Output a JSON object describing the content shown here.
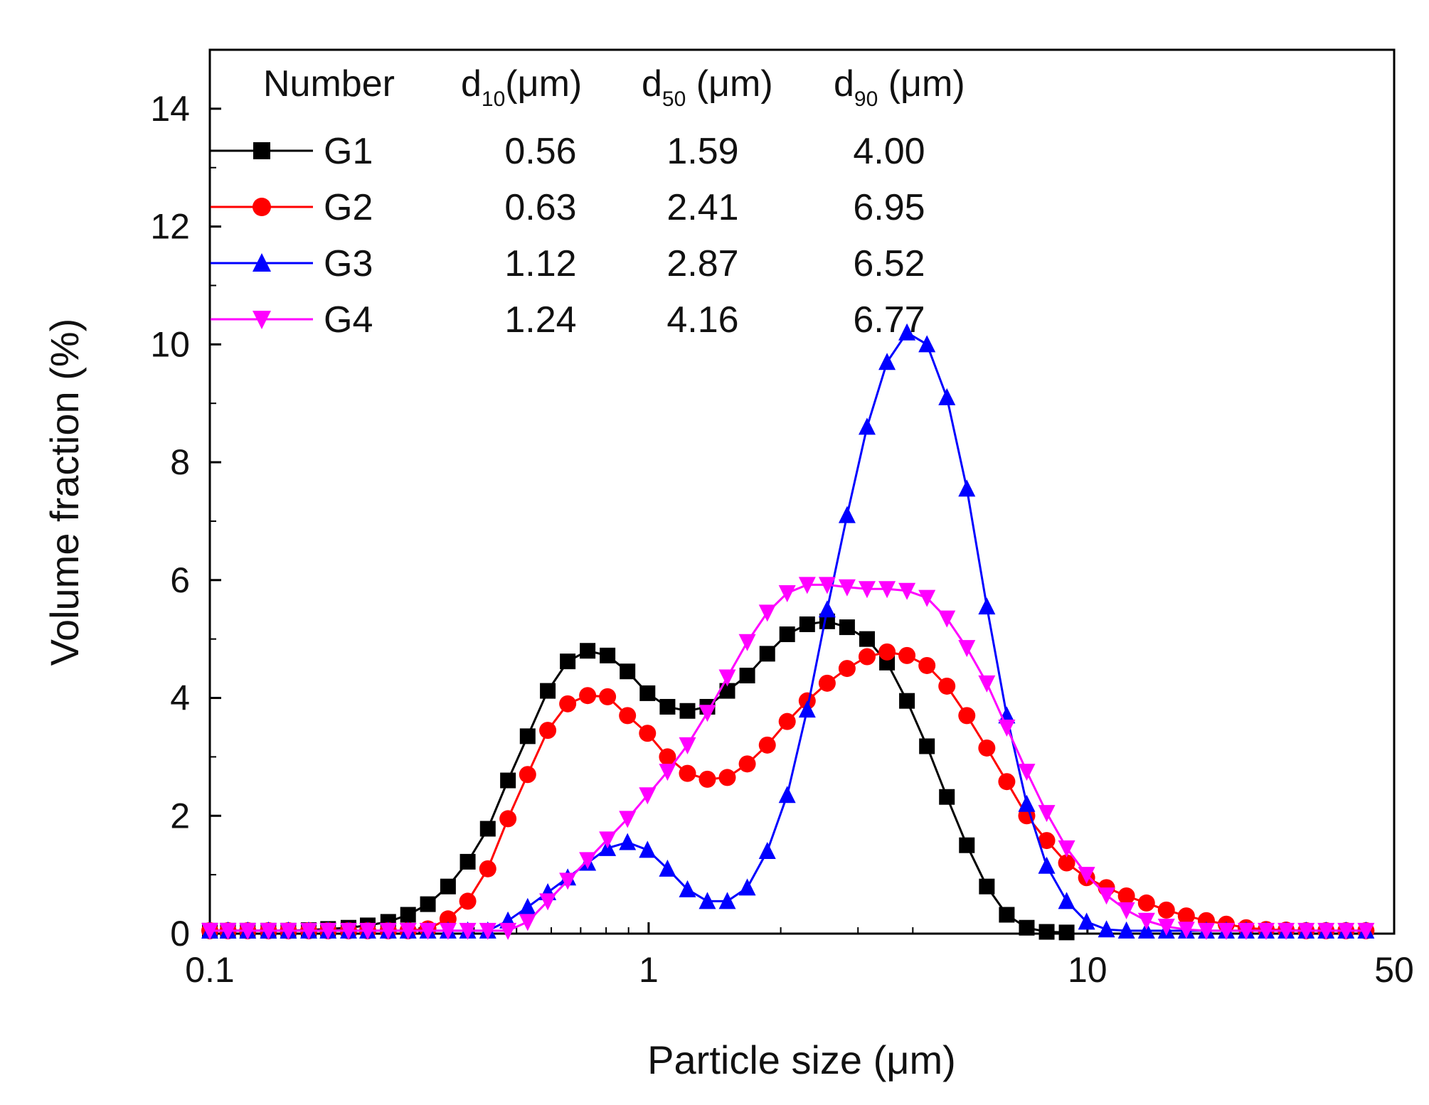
{
  "chart_data": {
    "type": "line",
    "xlabel": "Particle size (μm)",
    "ylabel": "Volume fraction (%)",
    "xscale": "log",
    "xlim": [
      0.1,
      50
    ],
    "ylim": [
      0,
      15
    ],
    "x_ticks": [
      {
        "value": 0.1,
        "label": "0.1"
      },
      {
        "value": 1,
        "label": "1"
      },
      {
        "value": 10,
        "label": "10"
      },
      {
        "value": 50,
        "label": "50"
      }
    ],
    "y_ticks": [
      {
        "value": 0,
        "label": "0"
      },
      {
        "value": 2,
        "label": "2"
      },
      {
        "value": 4,
        "label": "4"
      },
      {
        "value": 6,
        "label": "6"
      },
      {
        "value": 8,
        "label": "8"
      },
      {
        "value": 10,
        "label": "10"
      },
      {
        "value": 12,
        "label": "12"
      },
      {
        "value": 14,
        "label": "14"
      }
    ],
    "grid": false,
    "legend_position": "top-left",
    "legend_table": {
      "headers": {
        "number": "Number",
        "d10": {
          "main": "d",
          "sub": "10",
          "unit": "(μm)"
        },
        "d50": {
          "main": "d",
          "sub": "50",
          "unit": " (μm)"
        },
        "d90": {
          "main": "d",
          "sub": "90",
          "unit": " (μm)"
        }
      },
      "rows": [
        {
          "name": "G1",
          "d10": "0.56",
          "d50": "1.59",
          "d90": "4.00"
        },
        {
          "name": "G2",
          "d10": "0.63",
          "d50": "2.41",
          "d90": "6.95"
        },
        {
          "name": "G3",
          "d10": "1.12",
          "d50": "2.87",
          "d90": "6.52"
        },
        {
          "name": "G4",
          "d10": "1.24",
          "d50": "4.16",
          "d90": "6.77"
        }
      ]
    },
    "series": [
      {
        "name": "G1",
        "color": "#000000",
        "marker": "square",
        "points": [
          [
            0.1,
            0.05
          ],
          [
            0.11,
            0.05
          ],
          [
            0.122,
            0.05
          ],
          [
            0.136,
            0.05
          ],
          [
            0.151,
            0.05
          ],
          [
            0.168,
            0.06
          ],
          [
            0.186,
            0.08
          ],
          [
            0.207,
            0.1
          ],
          [
            0.229,
            0.14
          ],
          [
            0.255,
            0.2
          ],
          [
            0.283,
            0.32
          ],
          [
            0.314,
            0.5
          ],
          [
            0.349,
            0.8
          ],
          [
            0.387,
            1.22
          ],
          [
            0.43,
            1.78
          ],
          [
            0.478,
            2.6
          ],
          [
            0.53,
            3.35
          ],
          [
            0.589,
            4.12
          ],
          [
            0.654,
            4.62
          ],
          [
            0.726,
            4.8
          ],
          [
            0.806,
            4.72
          ],
          [
            0.895,
            4.45
          ],
          [
            0.994,
            4.08
          ],
          [
            1.104,
            3.85
          ],
          [
            1.226,
            3.78
          ],
          [
            1.361,
            3.85
          ],
          [
            1.511,
            4.12
          ],
          [
            1.678,
            4.38
          ],
          [
            1.864,
            4.75
          ],
          [
            2.069,
            5.08
          ],
          [
            2.298,
            5.25
          ],
          [
            2.552,
            5.3
          ],
          [
            2.833,
            5.2
          ],
          [
            3.146,
            5.0
          ],
          [
            3.494,
            4.6
          ],
          [
            3.879,
            3.95
          ],
          [
            4.308,
            3.18
          ],
          [
            4.783,
            2.32
          ],
          [
            5.311,
            1.5
          ],
          [
            5.898,
            0.8
          ],
          [
            6.549,
            0.32
          ],
          [
            7.272,
            0.1
          ],
          [
            8.075,
            0.03
          ],
          [
            8.966,
            0.02
          ]
        ]
      },
      {
        "name": "G2",
        "color": "#ff0000",
        "marker": "circle",
        "points": [
          [
            0.1,
            0.05
          ],
          [
            0.11,
            0.05
          ],
          [
            0.122,
            0.05
          ],
          [
            0.136,
            0.05
          ],
          [
            0.151,
            0.05
          ],
          [
            0.168,
            0.05
          ],
          [
            0.186,
            0.05
          ],
          [
            0.207,
            0.05
          ],
          [
            0.229,
            0.05
          ],
          [
            0.255,
            0.05
          ],
          [
            0.283,
            0.05
          ],
          [
            0.314,
            0.08
          ],
          [
            0.349,
            0.25
          ],
          [
            0.387,
            0.55
          ],
          [
            0.43,
            1.1
          ],
          [
            0.478,
            1.95
          ],
          [
            0.53,
            2.7
          ],
          [
            0.589,
            3.45
          ],
          [
            0.654,
            3.9
          ],
          [
            0.726,
            4.04
          ],
          [
            0.806,
            4.02
          ],
          [
            0.895,
            3.7
          ],
          [
            0.994,
            3.4
          ],
          [
            1.104,
            3.0
          ],
          [
            1.226,
            2.72
          ],
          [
            1.361,
            2.62
          ],
          [
            1.511,
            2.65
          ],
          [
            1.678,
            2.88
          ],
          [
            1.864,
            3.2
          ],
          [
            2.069,
            3.6
          ],
          [
            2.298,
            3.95
          ],
          [
            2.552,
            4.25
          ],
          [
            2.833,
            4.5
          ],
          [
            3.146,
            4.7
          ],
          [
            3.494,
            4.78
          ],
          [
            3.879,
            4.72
          ],
          [
            4.308,
            4.55
          ],
          [
            4.783,
            4.2
          ],
          [
            5.311,
            3.7
          ],
          [
            5.898,
            3.15
          ],
          [
            6.549,
            2.58
          ],
          [
            7.272,
            2.0
          ],
          [
            8.075,
            1.58
          ],
          [
            8.966,
            1.2
          ],
          [
            9.956,
            0.95
          ],
          [
            11.05,
            0.78
          ],
          [
            12.27,
            0.64
          ],
          [
            13.63,
            0.52
          ],
          [
            15.13,
            0.4
          ],
          [
            16.8,
            0.3
          ],
          [
            18.66,
            0.22
          ],
          [
            20.72,
            0.16
          ],
          [
            23.0,
            0.1
          ],
          [
            25.54,
            0.07
          ],
          [
            28.36,
            0.06
          ],
          [
            31.5,
            0.05
          ],
          [
            34.97,
            0.05
          ],
          [
            38.83,
            0.05
          ],
          [
            43.12,
            0.05
          ]
        ]
      },
      {
        "name": "G3",
        "color": "#0000ff",
        "marker": "triangle-up",
        "points": [
          [
            0.1,
            0.05
          ],
          [
            0.11,
            0.05
          ],
          [
            0.122,
            0.05
          ],
          [
            0.136,
            0.05
          ],
          [
            0.151,
            0.05
          ],
          [
            0.168,
            0.05
          ],
          [
            0.186,
            0.05
          ],
          [
            0.207,
            0.05
          ],
          [
            0.229,
            0.05
          ],
          [
            0.255,
            0.05
          ],
          [
            0.283,
            0.05
          ],
          [
            0.314,
            0.05
          ],
          [
            0.349,
            0.05
          ],
          [
            0.387,
            0.05
          ],
          [
            0.43,
            0.05
          ],
          [
            0.478,
            0.22
          ],
          [
            0.53,
            0.45
          ],
          [
            0.589,
            0.7
          ],
          [
            0.654,
            0.95
          ],
          [
            0.726,
            1.2
          ],
          [
            0.806,
            1.45
          ],
          [
            0.895,
            1.55
          ],
          [
            0.994,
            1.42
          ],
          [
            1.104,
            1.1
          ],
          [
            1.226,
            0.75
          ],
          [
            1.361,
            0.55
          ],
          [
            1.511,
            0.55
          ],
          [
            1.678,
            0.78
          ],
          [
            1.864,
            1.4
          ],
          [
            2.069,
            2.35
          ],
          [
            2.298,
            3.8
          ],
          [
            2.552,
            5.5
          ],
          [
            2.833,
            7.1
          ],
          [
            3.146,
            8.6
          ],
          [
            3.494,
            9.7
          ],
          [
            3.879,
            10.2
          ],
          [
            4.308,
            10.0
          ],
          [
            4.783,
            9.1
          ],
          [
            5.311,
            7.55
          ],
          [
            5.898,
            5.55
          ],
          [
            6.549,
            3.7
          ],
          [
            7.272,
            2.2
          ],
          [
            8.075,
            1.15
          ],
          [
            8.966,
            0.55
          ],
          [
            9.956,
            0.2
          ],
          [
            11.05,
            0.07
          ],
          [
            12.27,
            0.05
          ],
          [
            13.63,
            0.05
          ],
          [
            15.13,
            0.05
          ],
          [
            16.8,
            0.05
          ],
          [
            18.66,
            0.05
          ],
          [
            20.72,
            0.05
          ],
          [
            23.0,
            0.05
          ],
          [
            25.54,
            0.05
          ],
          [
            28.36,
            0.05
          ],
          [
            31.5,
            0.05
          ],
          [
            34.97,
            0.05
          ],
          [
            38.83,
            0.05
          ],
          [
            43.12,
            0.05
          ]
        ]
      },
      {
        "name": "G4",
        "color": "#ff00ff",
        "marker": "triangle-down",
        "points": [
          [
            0.1,
            0.05
          ],
          [
            0.11,
            0.05
          ],
          [
            0.122,
            0.05
          ],
          [
            0.136,
            0.05
          ],
          [
            0.151,
            0.05
          ],
          [
            0.168,
            0.05
          ],
          [
            0.186,
            0.05
          ],
          [
            0.207,
            0.05
          ],
          [
            0.229,
            0.05
          ],
          [
            0.255,
            0.05
          ],
          [
            0.283,
            0.05
          ],
          [
            0.314,
            0.05
          ],
          [
            0.349,
            0.05
          ],
          [
            0.387,
            0.05
          ],
          [
            0.43,
            0.05
          ],
          [
            0.478,
            0.05
          ],
          [
            0.53,
            0.2
          ],
          [
            0.589,
            0.55
          ],
          [
            0.654,
            0.9
          ],
          [
            0.726,
            1.25
          ],
          [
            0.806,
            1.6
          ],
          [
            0.895,
            1.95
          ],
          [
            0.994,
            2.35
          ],
          [
            1.104,
            2.75
          ],
          [
            1.226,
            3.2
          ],
          [
            1.361,
            3.75
          ],
          [
            1.511,
            4.35
          ],
          [
            1.678,
            4.95
          ],
          [
            1.864,
            5.45
          ],
          [
            2.069,
            5.78
          ],
          [
            2.298,
            5.92
          ],
          [
            2.552,
            5.92
          ],
          [
            2.833,
            5.88
          ],
          [
            3.146,
            5.85
          ],
          [
            3.494,
            5.85
          ],
          [
            3.879,
            5.82
          ],
          [
            4.308,
            5.7
          ],
          [
            4.783,
            5.35
          ],
          [
            5.311,
            4.85
          ],
          [
            5.898,
            4.25
          ],
          [
            6.549,
            3.5
          ],
          [
            7.272,
            2.75
          ],
          [
            8.075,
            2.05
          ],
          [
            8.966,
            1.45
          ],
          [
            9.956,
            1.0
          ],
          [
            11.05,
            0.65
          ],
          [
            12.27,
            0.4
          ],
          [
            13.63,
            0.22
          ],
          [
            15.13,
            0.12
          ],
          [
            16.8,
            0.07
          ],
          [
            18.66,
            0.05
          ],
          [
            20.72,
            0.05
          ],
          [
            23.0,
            0.05
          ],
          [
            25.54,
            0.05
          ],
          [
            28.36,
            0.05
          ],
          [
            31.5,
            0.05
          ],
          [
            34.97,
            0.05
          ],
          [
            38.83,
            0.05
          ],
          [
            43.12,
            0.05
          ]
        ]
      }
    ]
  }
}
